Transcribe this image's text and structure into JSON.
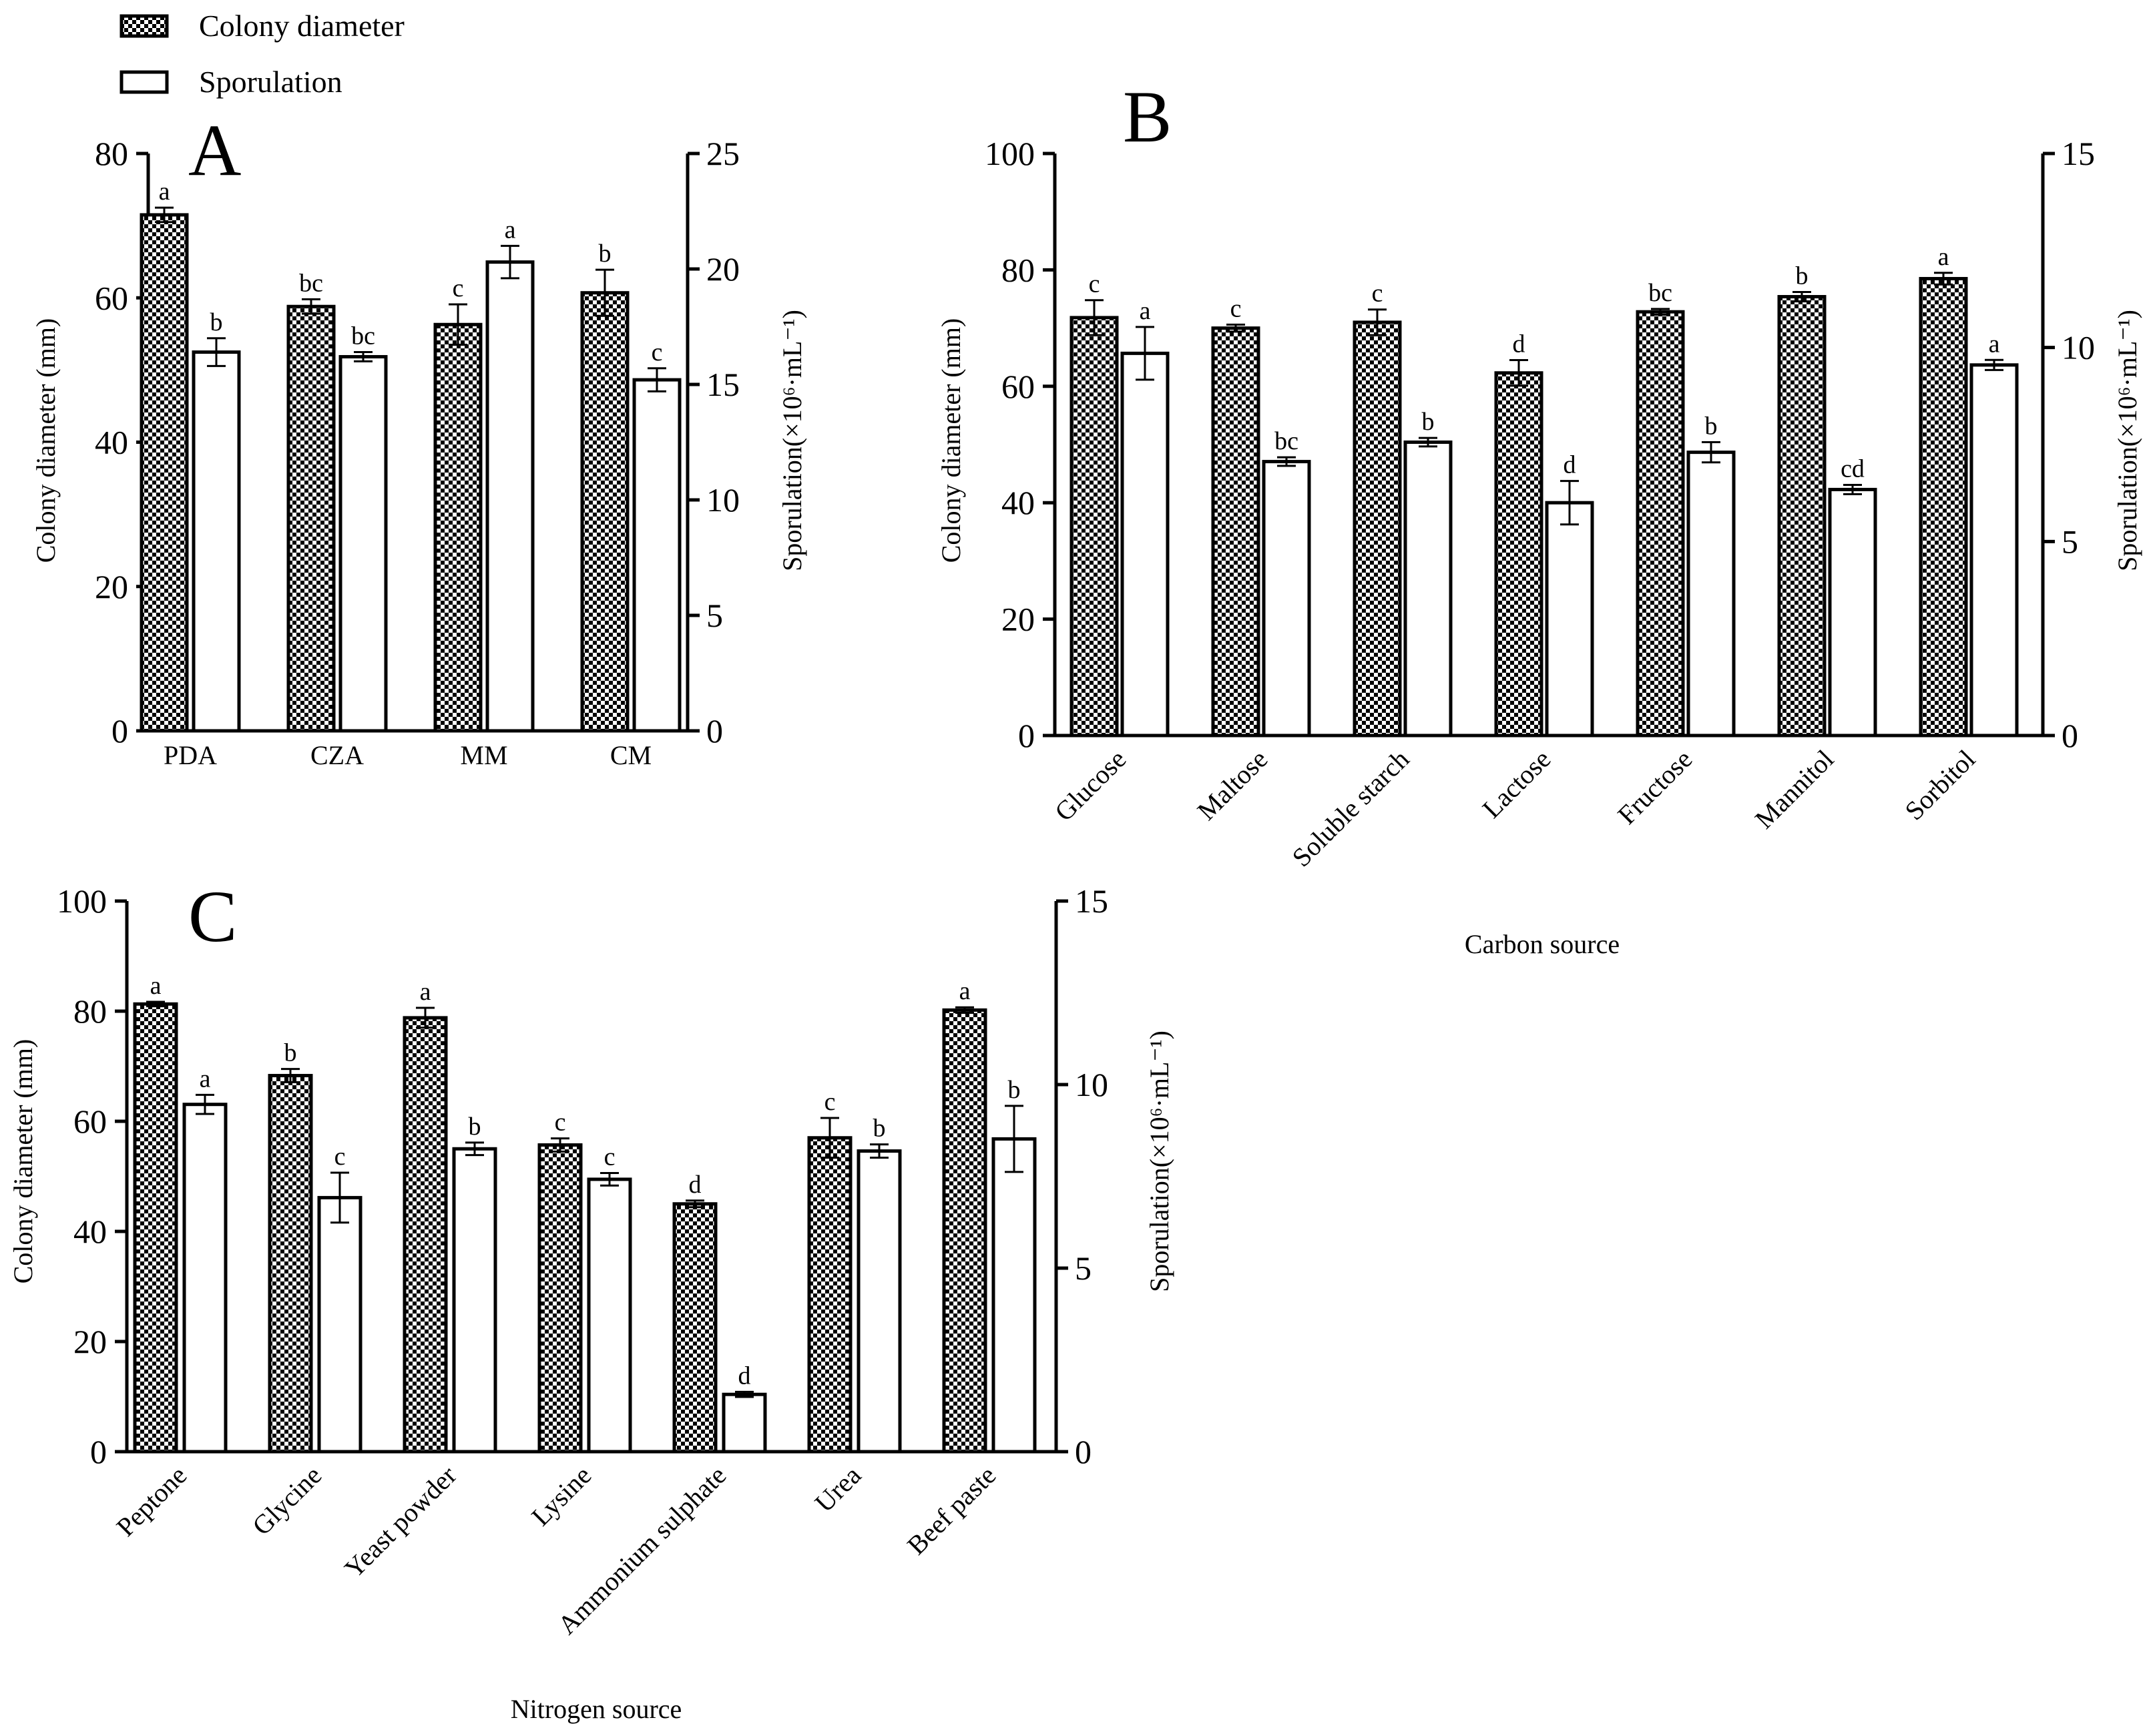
{
  "legend": {
    "colony_label": "Colony diameter",
    "sporulation_label": "Sporulation"
  },
  "colors": {
    "ink": "#000000",
    "checker_a": "#000000",
    "checker_b": "#ffffff",
    "open_bar": "#ffffff"
  },
  "chart_data": [
    {
      "panel": "A",
      "type": "bar",
      "title": "",
      "categories": [
        "PDA",
        "CZA",
        "MM",
        "CM"
      ],
      "xlabel": "",
      "ylabel": "Colony diameter (mm)",
      "y2label": "Sporulation(×10⁶·mL⁻¹)",
      "ylim": [
        0,
        80
      ],
      "yticks": [
        0,
        20,
        40,
        60,
        80
      ],
      "y2lim": [
        0,
        25
      ],
      "y2ticks": [
        0,
        5,
        10,
        15,
        20,
        25
      ],
      "series": [
        {
          "name": "Colony diameter",
          "axis": "left",
          "values": [
            71.5,
            58.8,
            56.3,
            60.7
          ],
          "errors": [
            1.0,
            1.0,
            2.8,
            3.2
          ],
          "letters": [
            "a",
            "bc",
            "c",
            "b"
          ]
        },
        {
          "name": "Sporulation",
          "axis": "right",
          "values": [
            16.4,
            16.2,
            20.3,
            15.2
          ],
          "errors": [
            0.6,
            0.2,
            0.7,
            0.5
          ],
          "letters": [
            "b",
            "bc",
            "a",
            "c"
          ]
        }
      ]
    },
    {
      "panel": "B",
      "type": "bar",
      "title": "",
      "categories": [
        "Glucose",
        "Maltose",
        "Soluble starch",
        "Lactose",
        "Fructose",
        "Mannitol",
        "Sorbitol"
      ],
      "xlabel": "Carbon source",
      "ylabel": "Colony diameter (mm)",
      "y2label": "Sporulation(×10⁶·mL⁻¹)",
      "ylim": [
        0,
        100
      ],
      "yticks": [
        0,
        20,
        40,
        60,
        80,
        100
      ],
      "y2lim": [
        0,
        15
      ],
      "y2ticks": [
        0,
        5,
        10,
        15
      ],
      "series": [
        {
          "name": "Colony diameter",
          "axis": "left",
          "values": [
            71.8,
            70.0,
            71.0,
            62.3,
            72.8,
            75.4,
            78.5
          ],
          "errors": [
            3.0,
            0.6,
            2.2,
            2.2,
            0.5,
            0.8,
            1.0
          ],
          "letters": [
            "c",
            "c",
            "c",
            "d",
            "bc",
            "b",
            "a"
          ]
        },
        {
          "name": "Sporulation",
          "axis": "right",
          "values": [
            9.85,
            7.06,
            7.56,
            6.0,
            7.3,
            6.34,
            9.55
          ],
          "errors": [
            0.68,
            0.11,
            0.11,
            0.56,
            0.26,
            0.12,
            0.13
          ],
          "letters": [
            "a",
            "bc",
            "b",
            "d",
            "b",
            "cd",
            "a"
          ]
        }
      ]
    },
    {
      "panel": "C",
      "type": "bar",
      "title": "",
      "categories": [
        "Peptone",
        "Glycine",
        "Yeast powder",
        "Lysine",
        "Ammonium sulphate",
        "Urea",
        "Beef paste"
      ],
      "xlabel": "Nitrogen source",
      "ylabel": "Colony diameter (mm)",
      "y2label": "Sporulation(×10⁶·mL⁻¹)",
      "ylim": [
        0,
        100
      ],
      "yticks": [
        0,
        20,
        40,
        60,
        80,
        100
      ],
      "y2lim": [
        0,
        15
      ],
      "y2ticks": [
        0,
        5,
        10,
        15
      ],
      "series": [
        {
          "name": "Colony diameter",
          "axis": "left",
          "values": [
            81.3,
            68.3,
            78.8,
            55.7,
            45.0,
            57.0,
            80.2
          ],
          "errors": [
            0.4,
            1.2,
            1.8,
            1.2,
            0.6,
            3.6,
            0.5
          ],
          "letters": [
            "a",
            "b",
            "a",
            "c",
            "d",
            "c",
            "a"
          ]
        },
        {
          "name": "Sporulation",
          "axis": "right",
          "values": [
            9.46,
            6.92,
            8.25,
            7.42,
            1.56,
            8.19,
            8.52
          ],
          "errors": [
            0.26,
            0.68,
            0.17,
            0.17,
            0.07,
            0.18,
            0.9
          ],
          "letters": [
            "a",
            "c",
            "b",
            "c",
            "d",
            "b",
            "b"
          ]
        }
      ]
    }
  ]
}
